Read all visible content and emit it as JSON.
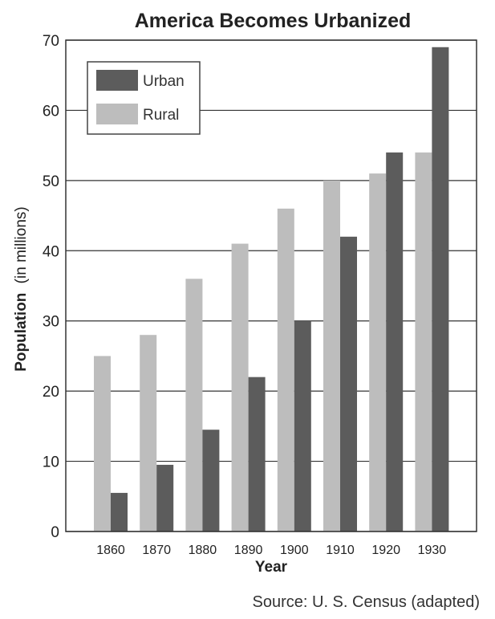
{
  "chart_data": {
    "type": "bar",
    "title": "America Becomes Urbanized",
    "xlabel": "Year",
    "ylabel_main": "Population",
    "ylabel_sub": "(in millions)",
    "categories": [
      "1860",
      "1870",
      "1880",
      "1890",
      "1900",
      "1910",
      "1920",
      "1930"
    ],
    "series": [
      {
        "name": "Rural",
        "values": [
          25,
          28,
          36,
          41,
          46,
          50,
          51,
          54
        ]
      },
      {
        "name": "Urban",
        "values": [
          5.5,
          9.5,
          14.5,
          22,
          30,
          42,
          54,
          69
        ]
      }
    ],
    "ylim": [
      0,
      70
    ],
    "yticks": [
      0,
      10,
      20,
      30,
      40,
      50,
      60,
      70
    ],
    "grid": true,
    "legend": {
      "placement": "top-left",
      "order": [
        "Urban",
        "Rural"
      ]
    },
    "source": "Source: U. S. Census (adapted)",
    "colors": {
      "Urban": "#5c5c5c",
      "Rural": "#bdbdbd",
      "grid": "#333333"
    }
  }
}
